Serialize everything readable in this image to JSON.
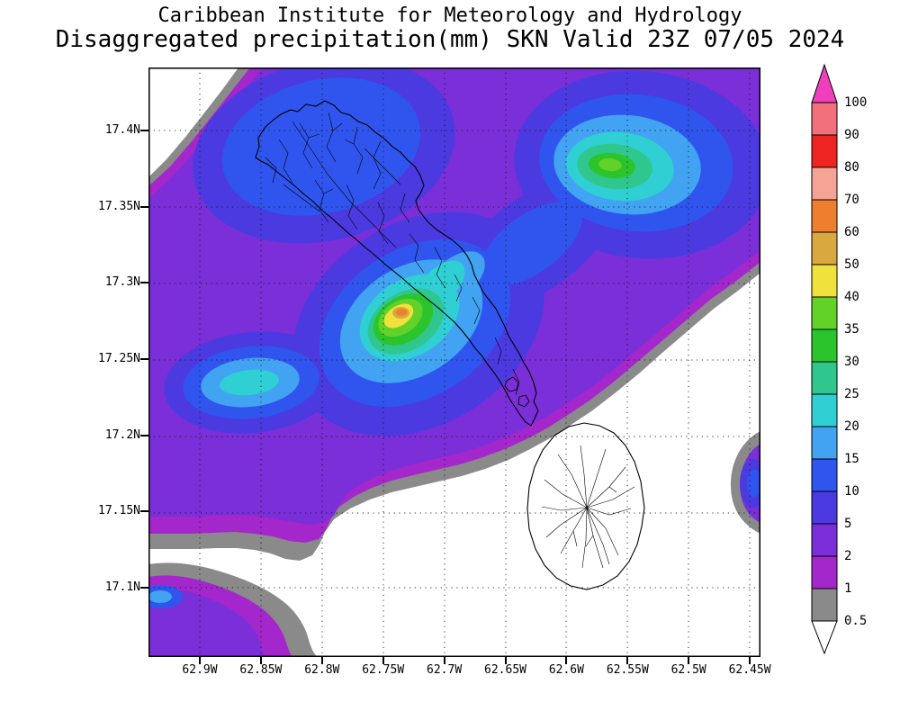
{
  "header": {
    "line1": "Caribbean Institute for Meteorology and Hydrology",
    "line2": "Disaggregated precipitation(mm) SKN Valid 23Z 07/05 2024"
  },
  "map": {
    "y_tick_labels": [
      "17.4N",
      "17.35N",
      "17.3N",
      "17.25N",
      "17.2N",
      "17.15N",
      "17.1N"
    ],
    "x_tick_labels": [
      "62.9W",
      "62.85W",
      "62.8W",
      "62.75W",
      "62.7W",
      "62.65W",
      "62.6W",
      "62.55W",
      "62.5W",
      "62.45W"
    ]
  },
  "colorbar": {
    "tick_labels": [
      "100",
      "90",
      "80",
      "70",
      "60",
      "50",
      "40",
      "35",
      "30",
      "25",
      "20",
      "15",
      "10",
      "5",
      "2",
      "1",
      "0.5"
    ],
    "over_color": "#ef3fbd",
    "under_color": "#ffffff",
    "segment_colors": [
      "#f1707c",
      "#ee2423",
      "#f5a394",
      "#ee7f2f",
      "#d9a83e",
      "#f0e13d",
      "#63d228",
      "#2cc42c",
      "#2fc78e",
      "#30cfd4",
      "#41a3f2",
      "#2f55ee",
      "#4b3ae0",
      "#7b2fd8",
      "#a327cb",
      "#8a8a8a"
    ],
    "level_colors": {
      "0.5-1": "#8a8a8a",
      "1-2": "#a327cb",
      "2-5": "#7b2fd8",
      "5-10": "#4b3ae0",
      "10-15": "#2f55ee",
      "15-20": "#41a3f2",
      "20-25": "#30cfd4",
      "25-30": "#2fc78e",
      "30-35": "#2cc42c",
      "35-40": "#63d228",
      "40-50": "#f0e13d",
      "50-60": "#d9a83e",
      "60-70": "#ee7f2f",
      "70-80": "#f5a394",
      "80-90": "#ee2423",
      "90-100": "#f1707c"
    }
  }
}
